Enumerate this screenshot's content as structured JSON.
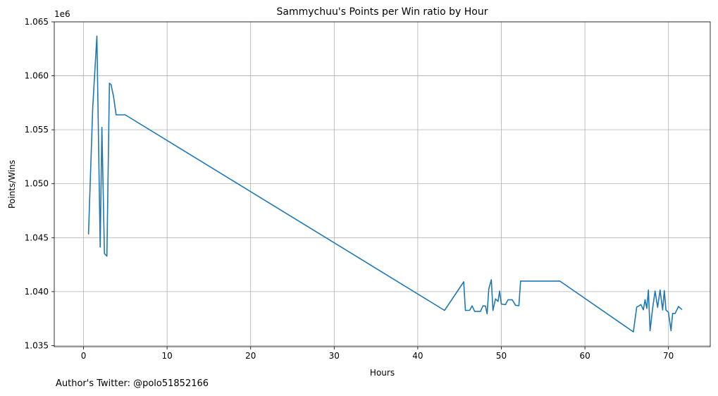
{
  "chart_data": {
    "type": "line",
    "title": "Sammychuu's Points per Win ratio by Hour",
    "xlabel": "Hours",
    "ylabel": "Points/Wins",
    "y_offset_label": "1e6",
    "xlim": [
      -3.5,
      75
    ],
    "ylim": [
      1.0349,
      1.065
    ],
    "x_ticks": [
      0,
      10,
      20,
      30,
      40,
      50,
      60,
      70
    ],
    "x_tick_labels": [
      "0",
      "10",
      "20",
      "30",
      "40",
      "50",
      "60",
      "70"
    ],
    "y_ticks": [
      1.035,
      1.04,
      1.045,
      1.05,
      1.055,
      1.06,
      1.065
    ],
    "y_tick_labels": [
      "1.035",
      "1.040",
      "1.045",
      "1.050",
      "1.055",
      "1.060",
      "1.065"
    ],
    "grid": true,
    "line_color": "#1f77b4",
    "series": [
      {
        "x": [
          0.6,
          1.1,
          1.6,
          2.0,
          2.2,
          2.5,
          2.8,
          3.1,
          3.3,
          3.6,
          3.9,
          4.2,
          5.0,
          43.2,
          45.5,
          45.7,
          46.2,
          46.5,
          46.8,
          47.5,
          47.8,
          48.1,
          48.3,
          48.5,
          48.8,
          49.0,
          49.3,
          49.6,
          49.8,
          50.0,
          50.5,
          50.8,
          51.3,
          51.7,
          52.1,
          52.3,
          57.0,
          65.8,
          66.2,
          66.7,
          67.0,
          67.2,
          67.4,
          67.6,
          67.8,
          68.1,
          68.4,
          68.7,
          69.0,
          69.3,
          69.5,
          69.7,
          70.0,
          70.3,
          70.5,
          70.8,
          71.2,
          71.6
        ],
        "y": [
          1.04533,
          1.05706,
          1.06368,
          1.04413,
          1.05522,
          1.04353,
          1.04329,
          1.05931,
          1.05918,
          1.05806,
          1.05638,
          1.05638,
          1.05638,
          1.03826,
          1.04091,
          1.03826,
          1.03826,
          1.03868,
          1.03817,
          1.03817,
          1.03868,
          1.03866,
          1.03795,
          1.04025,
          1.0411,
          1.03826,
          1.03933,
          1.0391,
          1.04005,
          1.03885,
          1.0388,
          1.03925,
          1.03925,
          1.03873,
          1.0387,
          1.04098,
          1.04098,
          1.03627,
          1.03856,
          1.0388,
          1.03832,
          1.03925,
          1.03845,
          1.04015,
          1.03638,
          1.03845,
          1.04005,
          1.03855,
          1.04015,
          1.0383,
          1.0401,
          1.0383,
          1.03808,
          1.03638,
          1.03798,
          1.03798,
          1.03862,
          1.03835
        ]
      }
    ]
  },
  "footer_text": "Author's Twitter: @polo51852166"
}
